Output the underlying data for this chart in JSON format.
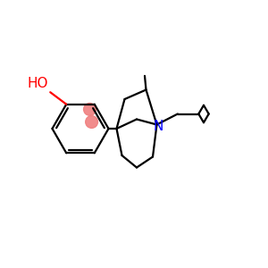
{
  "background_color": "#ffffff",
  "bond_color": "#000000",
  "nitrogen_color": "#0000ff",
  "oxygen_color": "#ff0000",
  "highlight_color": "#f08080",
  "line_width": 1.6,
  "font_size_label": 11,
  "title": ""
}
